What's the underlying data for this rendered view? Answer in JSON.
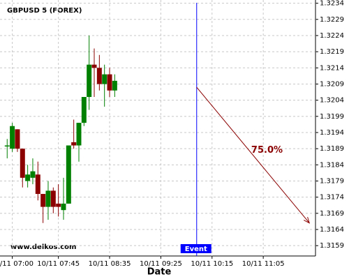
{
  "chart_data": {
    "type": "candlestick",
    "title": "GBPUSD 5 (FOREX)",
    "watermark": "www.delkos.com",
    "x_label": "Date",
    "x": [
      "10/11 06:55",
      "10/11 07:00",
      "10/11 07:05",
      "10/11 07:10",
      "10/11 07:15",
      "10/11 07:20",
      "10/11 07:25",
      "10/11 07:30",
      "10/11 07:35",
      "10/11 07:40",
      "10/11 07:45",
      "10/11 07:50",
      "10/11 07:55",
      "10/11 08:00",
      "10/11 08:05",
      "10/11 08:10",
      "10/11 08:15",
      "10/11 08:20",
      "10/11 08:25",
      "10/11 08:30",
      "10/11 08:35",
      "10/11 08:40"
    ],
    "open": [
      1.319,
      1.3189,
      1.3195,
      1.3189,
      1.3179,
      1.318,
      1.3181,
      1.3175,
      1.3171,
      1.3176,
      1.3172,
      1.317,
      1.3172,
      1.3191,
      1.319,
      1.3197,
      1.3205,
      1.3215,
      1.3214,
      1.3209,
      1.3212,
      1.3207
    ],
    "high": [
      1.3192,
      1.3197,
      1.3195,
      1.3189,
      1.3184,
      1.3186,
      1.3185,
      1.3175,
      1.3179,
      1.3177,
      1.3178,
      1.318,
      1.319,
      1.3198,
      1.3197,
      1.3205,
      1.3224,
      1.322,
      1.3218,
      1.3215,
      1.3214,
      1.3212
    ],
    "low": [
      1.3186,
      1.3188,
      1.3188,
      1.3177,
      1.3177,
      1.3178,
      1.3173,
      1.3166,
      1.3167,
      1.3169,
      1.3168,
      1.3167,
      1.3172,
      1.3189,
      1.3185,
      1.3196,
      1.3201,
      1.3205,
      1.3207,
      1.3202,
      1.3205,
      1.3205
    ],
    "close": [
      1.319,
      1.3196,
      1.3189,
      1.318,
      1.3181,
      1.3182,
      1.3175,
      1.3171,
      1.3176,
      1.3171,
      1.3171,
      1.3172,
      1.319,
      1.319,
      1.3197,
      1.3205,
      1.3215,
      1.3214,
      1.3209,
      1.3212,
      1.3207,
      1.321
    ],
    "up_color": "#008000",
    "down_color": "#8b0000",
    "xlim": [
      "10/11 06:48",
      "10/11 11:56"
    ],
    "xticks": [
      "10/11 07:00",
      "10/11 07:45",
      "10/11 08:35",
      "10/11 09:25",
      "10/11 10:15",
      "10/11 11:05"
    ],
    "ylim": [
      1.31558,
      1.3235
    ],
    "yticks": [
      1.3159,
      1.3164,
      1.3169,
      1.3174,
      1.3179,
      1.3184,
      1.3189,
      1.3194,
      1.3199,
      1.3204,
      1.3209,
      1.3214,
      1.3219,
      1.3224,
      1.3229,
      1.3234
    ],
    "grid": true,
    "event": {
      "x": "10/11 10:00",
      "label": "Event",
      "color": "#0000ff"
    },
    "prediction": {
      "start": {
        "x": "10/11 10:00",
        "y": 1.3208
      },
      "end": {
        "x": "10/11 11:50",
        "y": 1.3166
      },
      "label": "75.0%",
      "color": "#8b0000"
    }
  }
}
